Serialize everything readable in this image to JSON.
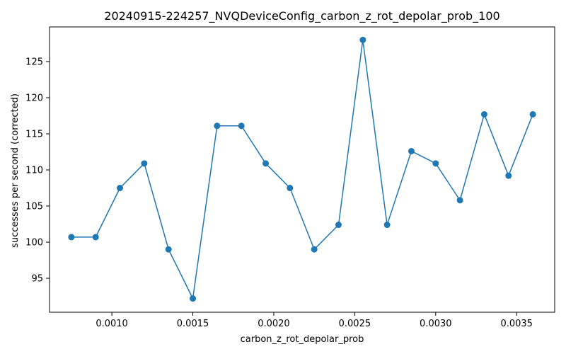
{
  "chart_data": {
    "type": "line",
    "title": "20240915-224257_NVQDeviceConfig_carbon_z_rot_depolar_prob_100",
    "xlabel": "carbon_z_rot_depolar_prob",
    "ylabel": "successes per second (corrected)",
    "xlim": [
      0.000615,
      0.003735
    ],
    "ylim": [
      90.3,
      129.8
    ],
    "xticks": [
      0.001,
      0.0015,
      0.002,
      0.0025,
      0.003,
      0.0035
    ],
    "xtick_labels": [
      "0.0010",
      "0.0015",
      "0.0020",
      "0.0025",
      "0.0030",
      "0.0035"
    ],
    "yticks": [
      95,
      100,
      105,
      110,
      115,
      120,
      125
    ],
    "ytick_labels": [
      "95",
      "100",
      "105",
      "110",
      "115",
      "120",
      "125"
    ],
    "grid": false,
    "series": [
      {
        "color": "#1f77b4",
        "marker": "circle",
        "x": [
          0.00075,
          0.0009,
          0.00105,
          0.0012,
          0.00135,
          0.0015,
          0.00165,
          0.0018,
          0.00195,
          0.0021,
          0.00225,
          0.0024,
          0.00255,
          0.0027,
          0.00285,
          0.003,
          0.00315,
          0.0033,
          0.00345,
          0.0036
        ],
        "y": [
          100.7,
          100.7,
          107.5,
          110.9,
          99.0,
          92.2,
          116.1,
          116.1,
          110.9,
          107.5,
          99.0,
          102.4,
          128.0,
          102.4,
          112.6,
          110.9,
          105.8,
          117.7,
          109.2,
          117.7
        ]
      }
    ]
  }
}
